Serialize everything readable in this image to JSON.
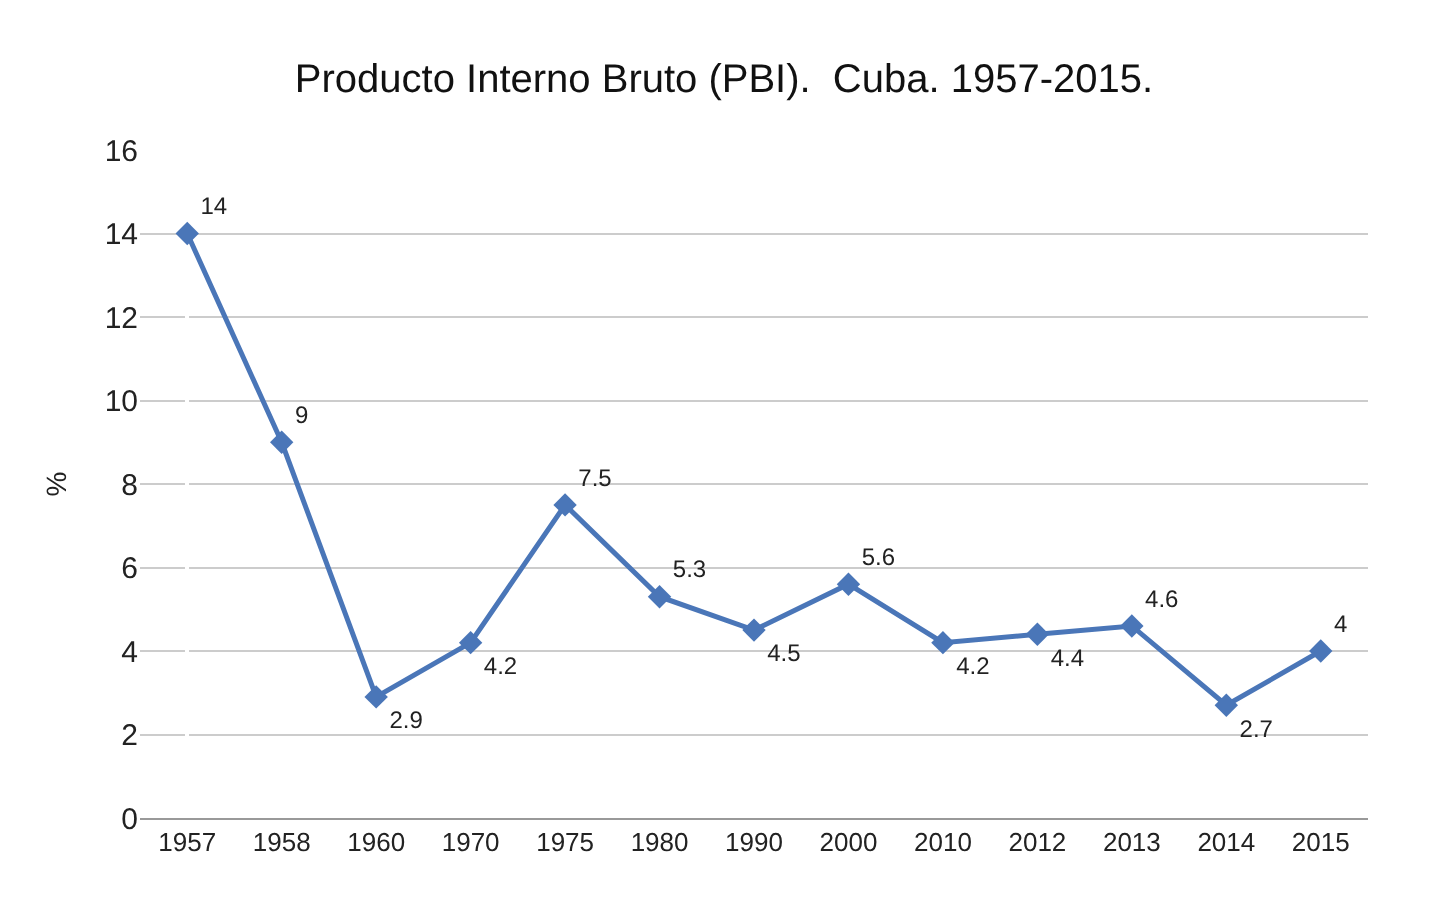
{
  "chart_data": {
    "type": "line",
    "title": "Producto Interno Bruto (PBI).  Cuba. 1957-2015.",
    "ylabel": "%",
    "categories": [
      "1957",
      "1958",
      "1960",
      "1970",
      "1975",
      "1980",
      "1990",
      "2000",
      "2010",
      "2012",
      "2013",
      "2014",
      "2015"
    ],
    "series": [
      {
        "color": "#4a76b8",
        "values": [
          14,
          9,
          2.9,
          4.2,
          7.5,
          5.3,
          4.5,
          5.6,
          4.2,
          4.4,
          4.6,
          2.7,
          4
        ]
      }
    ],
    "ylim": [
      0,
      16
    ],
    "yticks": [
      0,
      2,
      4,
      6,
      8,
      10,
      12,
      14,
      16
    ],
    "grid": "y",
    "marker": "diamond",
    "line_style": "solid",
    "data_labels": true
  }
}
